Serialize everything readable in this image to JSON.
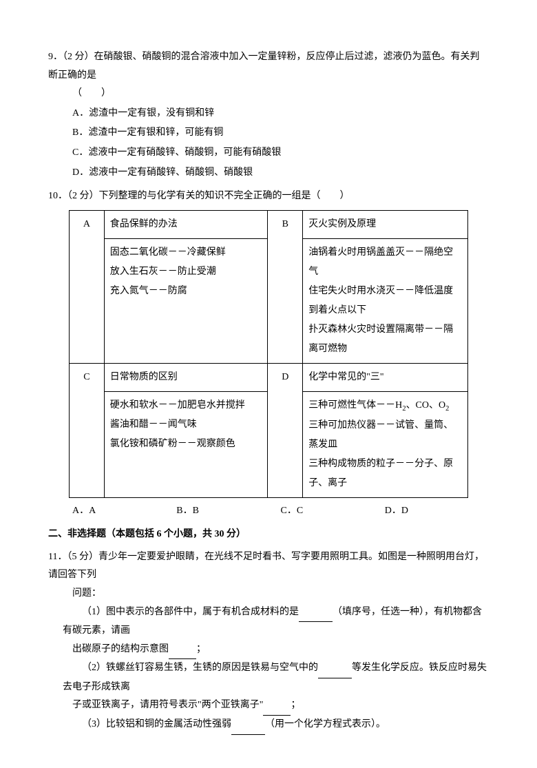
{
  "q9": {
    "num": "9．",
    "points": "（2 分）",
    "stem1": "在硝酸银、硝酸铜的混合溶液中加入一定量锌粉，反应停止后过滤，滤液仍为蓝色。有关判断正确的是",
    "stem2": "（　　）",
    "A": "A．滤渣中一定有银，没有铜和锌",
    "B": "B．滤渣中一定有银和锌，可能有铜",
    "C": "C．滤液中一定有硝酸锌、硝酸铜，可能有硝酸银",
    "D": "D．滤液中一定有硝酸锌、硝酸铜、硝酸银"
  },
  "q10": {
    "num": "10．",
    "points": "（2 分）",
    "stem": "下列整理的与化学有关的知识不完全正确的一组是（　　）",
    "table": {
      "A_label": "A",
      "A_title": "食品保鲜的办法",
      "A_body": "固态二氧化碳－－冷藏保鲜\n放入生石灰－－防止受潮\n充入氮气－－防腐",
      "B_label": "B",
      "B_title": "灭火实例及原理",
      "B_body": "油锅着火时用锅盖盖灭－－隔绝空气\n住宅失火时用水浇灭－－降低温度到着火点以下\n扑灭森林火灾时设置隔离带－－隔离可燃物",
      "C_label": "C",
      "C_title": "日常物质的区别",
      "C_body": "硬水和软水－－加肥皂水并搅拌\n酱油和醋－－闻气味\n氯化铵和磷矿粉－－观察颜色",
      "D_label": "D",
      "D_title": "化学中常见的\"三\"",
      "D_body": "三种可燃性气体－－H₂、CO、O₂\n三种可加热仪器－－试管、量筒、蒸发皿\n三种构成物质的粒子－－分子、原子、离子"
    },
    "choices": {
      "A": "A．A",
      "B": "B．B",
      "C": "C．C",
      "D": "D．D"
    }
  },
  "section2": "二、非选择题（本题包括 6 个小题，共 30 分）",
  "q11": {
    "num": "11．",
    "points": "（5 分）",
    "stem1": "青少年一定要爱护眼睛，在光线不足时看书、写字要用照明工具。如图是一种照明用台灯，请回答下列",
    "stem2": "问题：",
    "p1a": "（1）图中表示的各部件中，属于有机合成材料的是",
    "p1b": "（填序号，任选一种），有机物都含有碳元素，请画",
    "p1c": "出碳原子的结构示意图",
    "p1d": "；",
    "p2a": "（2）铁螺丝钉容易生锈，生锈的原因是铁易与空气中的",
    "p2b": "等发生化学反应。铁反应时易失去电子形成铁离",
    "p2c": "子或亚铁离子，请用符号表示\"两个亚铁离子\"",
    "p2d": "；",
    "p3a": "（3）比较铝和铜的金属活动性强弱",
    "p3b": "（用一个化学方程式表示）。"
  }
}
